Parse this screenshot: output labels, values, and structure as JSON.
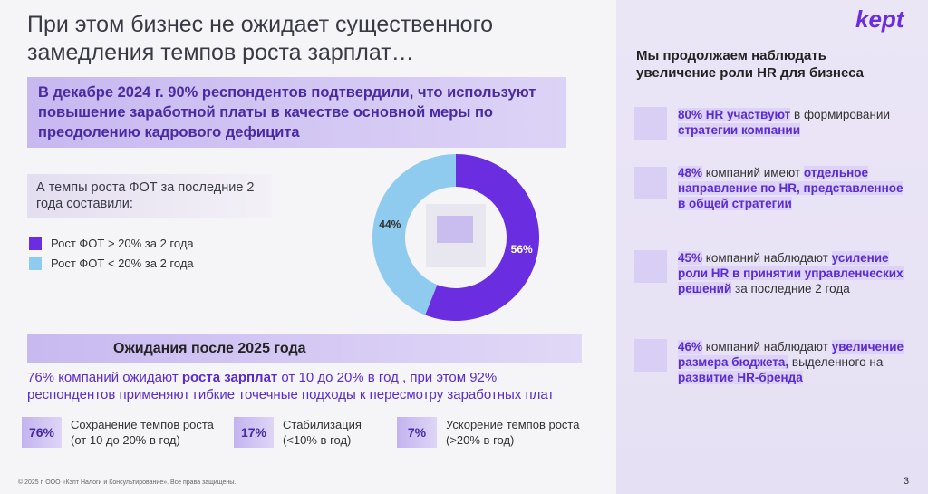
{
  "title": "При этом бизнес не ожидает существенного замедления темпов роста зарплат…",
  "logo": "kept",
  "banner": "В декабре 2024 г. 90% респондентов подтвердили, что используют повышение заработной платы в качестве основной меры по преодолению кадрового дефицита",
  "fot_box": "А темпы роста ФОТ за последние 2 года составили:",
  "chart_data": {
    "type": "donut",
    "categories": [
      "Рост ФОТ > 20% за 2 года",
      "Рост ФОТ < 20% за 2 года"
    ],
    "values": [
      56,
      44
    ],
    "value_labels": [
      "56%",
      "44%"
    ],
    "colors": [
      "#6a2ee0",
      "#8ecbee"
    ]
  },
  "expectations": {
    "heading": "Ожидания после 2025 года",
    "text": [
      "76% компаний ожидают ",
      "роста зарплат",
      " от 10 до 20% в год , при этом 92% респондентов применяют гибкие точечные подходы к пересмотру заработных плат"
    ],
    "stats": [
      {
        "value": "76%",
        "label": "Сохранение темпов роста (от 10 до 20% в год)"
      },
      {
        "value": "17%",
        "label": "Стабилизация (<10% в год)"
      },
      {
        "value": "7%",
        "label": "Ускорение темпов роста (>20% в год)"
      }
    ]
  },
  "side": {
    "heading": "Мы продолжаем наблюдать увеличение роли HR для бизнеса",
    "items": [
      [
        "80% HR участвуют",
        " в формировании ",
        "стратегии компании"
      ],
      [
        "48%",
        " компаний имеют ",
        "отдельное направление по HR, представленное в общей стратегии"
      ],
      [
        "45%",
        " компаний наблюдают ",
        "усиление роли HR в принятии управленческих решений",
        " за последние 2 года"
      ],
      [
        "46%",
        " компаний наблюдают ",
        "увеличение размера бюджета,",
        " выделенного на ",
        "развитие HR-бренда"
      ]
    ]
  },
  "footer": "© 2025 г. ООО «Кэпт Налоги и Консультирование». Все права защищены.",
  "page": "3"
}
